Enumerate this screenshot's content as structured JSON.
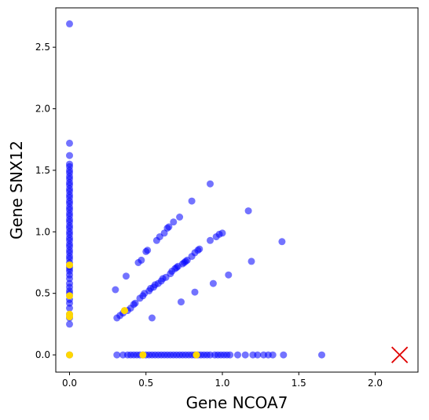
{
  "chart_data": {
    "type": "scatter",
    "title": "",
    "xlabel": "Gene NCOA7",
    "ylabel": "Gene SNX12",
    "xlim": [
      -0.09,
      2.28
    ],
    "ylim": [
      -0.14,
      2.82
    ],
    "xticks": [
      0.0,
      0.5,
      1.0,
      1.5,
      2.0
    ],
    "yticks": [
      0.0,
      0.5,
      1.0,
      1.5,
      2.0,
      2.5
    ],
    "xtick_labels": [
      "0.0",
      "0.5",
      "1.0",
      "1.5",
      "2.0"
    ],
    "ytick_labels": [
      "0.0",
      "0.5",
      "1.0",
      "1.5",
      "2.0",
      "2.5"
    ],
    "grid": false,
    "colors": {
      "cells": "#0000ff",
      "highlight": "#ffd700",
      "marker": "#e00000"
    },
    "series": [
      {
        "color": "#0000ff",
        "alpha": 0.55,
        "points": [
          [
            0,
            0
          ],
          [
            0,
            0.25
          ],
          [
            0,
            0.3
          ],
          [
            0,
            0.33
          ],
          [
            0,
            0.38
          ],
          [
            0,
            0.42
          ],
          [
            0,
            0.45
          ],
          [
            0,
            0.5
          ],
          [
            0,
            0.52
          ],
          [
            0,
            0.55
          ],
          [
            0,
            0.58
          ],
          [
            0,
            0.62
          ],
          [
            0,
            0.65
          ],
          [
            0,
            0.68
          ],
          [
            0,
            0.7
          ],
          [
            0,
            0.72
          ],
          [
            0,
            0.75
          ],
          [
            0,
            0.78
          ],
          [
            0,
            0.8
          ],
          [
            0,
            0.83
          ],
          [
            0,
            0.85
          ],
          [
            0,
            0.88
          ],
          [
            0,
            0.9
          ],
          [
            0,
            0.93
          ],
          [
            0,
            0.95
          ],
          [
            0,
            0.98
          ],
          [
            0,
            1.0
          ],
          [
            0,
            1.03
          ],
          [
            0,
            1.05
          ],
          [
            0,
            1.08
          ],
          [
            0,
            1.1
          ],
          [
            0,
            1.13
          ],
          [
            0,
            1.15
          ],
          [
            0,
            1.18
          ],
          [
            0,
            1.2
          ],
          [
            0,
            1.23
          ],
          [
            0,
            1.25
          ],
          [
            0,
            1.28
          ],
          [
            0,
            1.3
          ],
          [
            0,
            1.33
          ],
          [
            0,
            1.35
          ],
          [
            0,
            1.38
          ],
          [
            0,
            1.4
          ],
          [
            0,
            1.43
          ],
          [
            0,
            1.45
          ],
          [
            0,
            1.48
          ],
          [
            0,
            1.5
          ],
          [
            0,
            1.53
          ],
          [
            0,
            1.55
          ],
          [
            0,
            1.62
          ],
          [
            0,
            1.72
          ],
          [
            0,
            2.69
          ],
          [
            0.3,
            0.53
          ],
          [
            0.31,
            0.3
          ],
          [
            0.33,
            0.32
          ],
          [
            0.35,
            0.34
          ],
          [
            0.37,
            0.64
          ],
          [
            0.38,
            0.36
          ],
          [
            0.4,
            0.38
          ],
          [
            0.42,
            0.41
          ],
          [
            0.43,
            0.42
          ],
          [
            0.45,
            0.75
          ],
          [
            0.46,
            0.46
          ],
          [
            0.47,
            0.77
          ],
          [
            0.48,
            0.48
          ],
          [
            0.49,
            0.5
          ],
          [
            0.5,
            0.84
          ],
          [
            0.51,
            0.85
          ],
          [
            0.52,
            0.52
          ],
          [
            0.53,
            0.54
          ],
          [
            0.54,
            0.3
          ],
          [
            0.55,
            0.55
          ],
          [
            0.56,
            0.57
          ],
          [
            0.57,
            0.93
          ],
          [
            0.58,
            0.58
          ],
          [
            0.59,
            0.96
          ],
          [
            0.6,
            0.6
          ],
          [
            0.61,
            0.62
          ],
          [
            0.62,
            0.99
          ],
          [
            0.63,
            0.63
          ],
          [
            0.64,
            1.03
          ],
          [
            0.65,
            1.04
          ],
          [
            0.66,
            0.66
          ],
          [
            0.67,
            0.68
          ],
          [
            0.68,
            1.08
          ],
          [
            0.69,
            0.7
          ],
          [
            0.7,
            0.71
          ],
          [
            0.71,
            0.72
          ],
          [
            0.72,
            1.12
          ],
          [
            0.73,
            0.43
          ],
          [
            0.74,
            0.74
          ],
          [
            0.75,
            0.75
          ],
          [
            0.76,
            0.76
          ],
          [
            0.77,
            0.77
          ],
          [
            0.8,
            0.8
          ],
          [
            0.8,
            1.25
          ],
          [
            0.82,
            0.51
          ],
          [
            0.82,
            0.83
          ],
          [
            0.84,
            0.85
          ],
          [
            0.85,
            0.86
          ],
          [
            0.92,
            0.93
          ],
          [
            0.92,
            1.39
          ],
          [
            0.94,
            0.58
          ],
          [
            0.96,
            0.96
          ],
          [
            0.98,
            0.98
          ],
          [
            1.0,
            0.99
          ],
          [
            1.04,
            0.65
          ],
          [
            1.17,
            1.17
          ],
          [
            1.19,
            0.76
          ],
          [
            1.39,
            0.92
          ],
          [
            0.31,
            0
          ],
          [
            0.35,
            0
          ],
          [
            0.38,
            0
          ],
          [
            0.4,
            0
          ],
          [
            0.42,
            0
          ],
          [
            0.44,
            0
          ],
          [
            0.46,
            0
          ],
          [
            0.48,
            0
          ],
          [
            0.5,
            0
          ],
          [
            0.52,
            0
          ],
          [
            0.54,
            0
          ],
          [
            0.56,
            0
          ],
          [
            0.58,
            0
          ],
          [
            0.6,
            0
          ],
          [
            0.62,
            0
          ],
          [
            0.64,
            0
          ],
          [
            0.66,
            0
          ],
          [
            0.68,
            0
          ],
          [
            0.7,
            0
          ],
          [
            0.72,
            0
          ],
          [
            0.74,
            0
          ],
          [
            0.76,
            0
          ],
          [
            0.78,
            0
          ],
          [
            0.8,
            0
          ],
          [
            0.82,
            0
          ],
          [
            0.84,
            0
          ],
          [
            0.86,
            0
          ],
          [
            0.88,
            0
          ],
          [
            0.9,
            0
          ],
          [
            0.92,
            0
          ],
          [
            0.95,
            0
          ],
          [
            0.97,
            0
          ],
          [
            0.99,
            0
          ],
          [
            1.01,
            0
          ],
          [
            1.03,
            0
          ],
          [
            1.05,
            0
          ],
          [
            1.1,
            0
          ],
          [
            1.15,
            0
          ],
          [
            1.2,
            0
          ],
          [
            1.23,
            0
          ],
          [
            1.27,
            0
          ],
          [
            1.3,
            0
          ],
          [
            1.33,
            0
          ],
          [
            1.4,
            0
          ],
          [
            1.65,
            0
          ]
        ]
      },
      {
        "color": "#ffd700",
        "alpha": 1.0,
        "points": [
          [
            0,
            0
          ],
          [
            0,
            0.31
          ],
          [
            0,
            0.33
          ],
          [
            0,
            0.48
          ],
          [
            0,
            0.73
          ],
          [
            0.36,
            0.36
          ],
          [
            0.48,
            0
          ],
          [
            0.83,
            0
          ]
        ]
      }
    ],
    "marker": {
      "symbol": "x",
      "x": 2.16,
      "y": 0
    }
  }
}
